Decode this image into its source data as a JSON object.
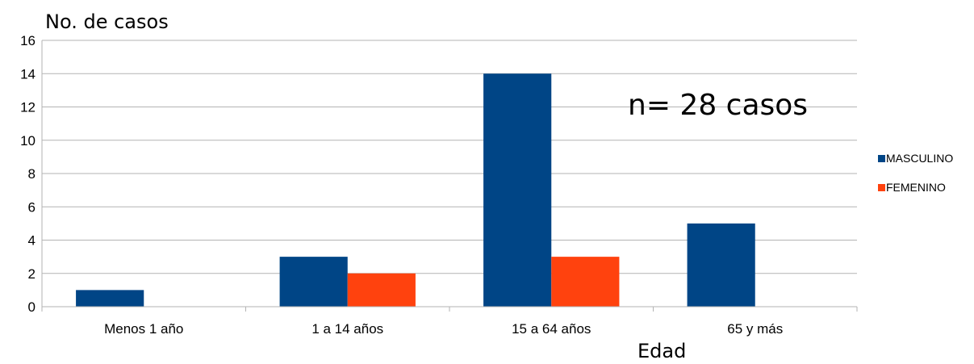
{
  "chart_data": {
    "type": "bar",
    "ylabel": "No. de casos",
    "xlabel": "Edad",
    "categories": [
      "Menos 1 año",
      "1 a 14 años",
      "15 a 64 años",
      "65 y más"
    ],
    "series": [
      {
        "name": "MASCULINO",
        "values": [
          1,
          3,
          14,
          5
        ],
        "color": "#004586"
      },
      {
        "name": "FEMENINO",
        "values": [
          0,
          2,
          3,
          0
        ],
        "color": "#ff420e"
      }
    ],
    "ylim": [
      0,
      16
    ],
    "yticks": [
      0,
      2,
      4,
      6,
      8,
      10,
      12,
      14,
      16
    ],
    "grid": true,
    "legend_position": "right",
    "annotation": "n= 28 casos"
  }
}
